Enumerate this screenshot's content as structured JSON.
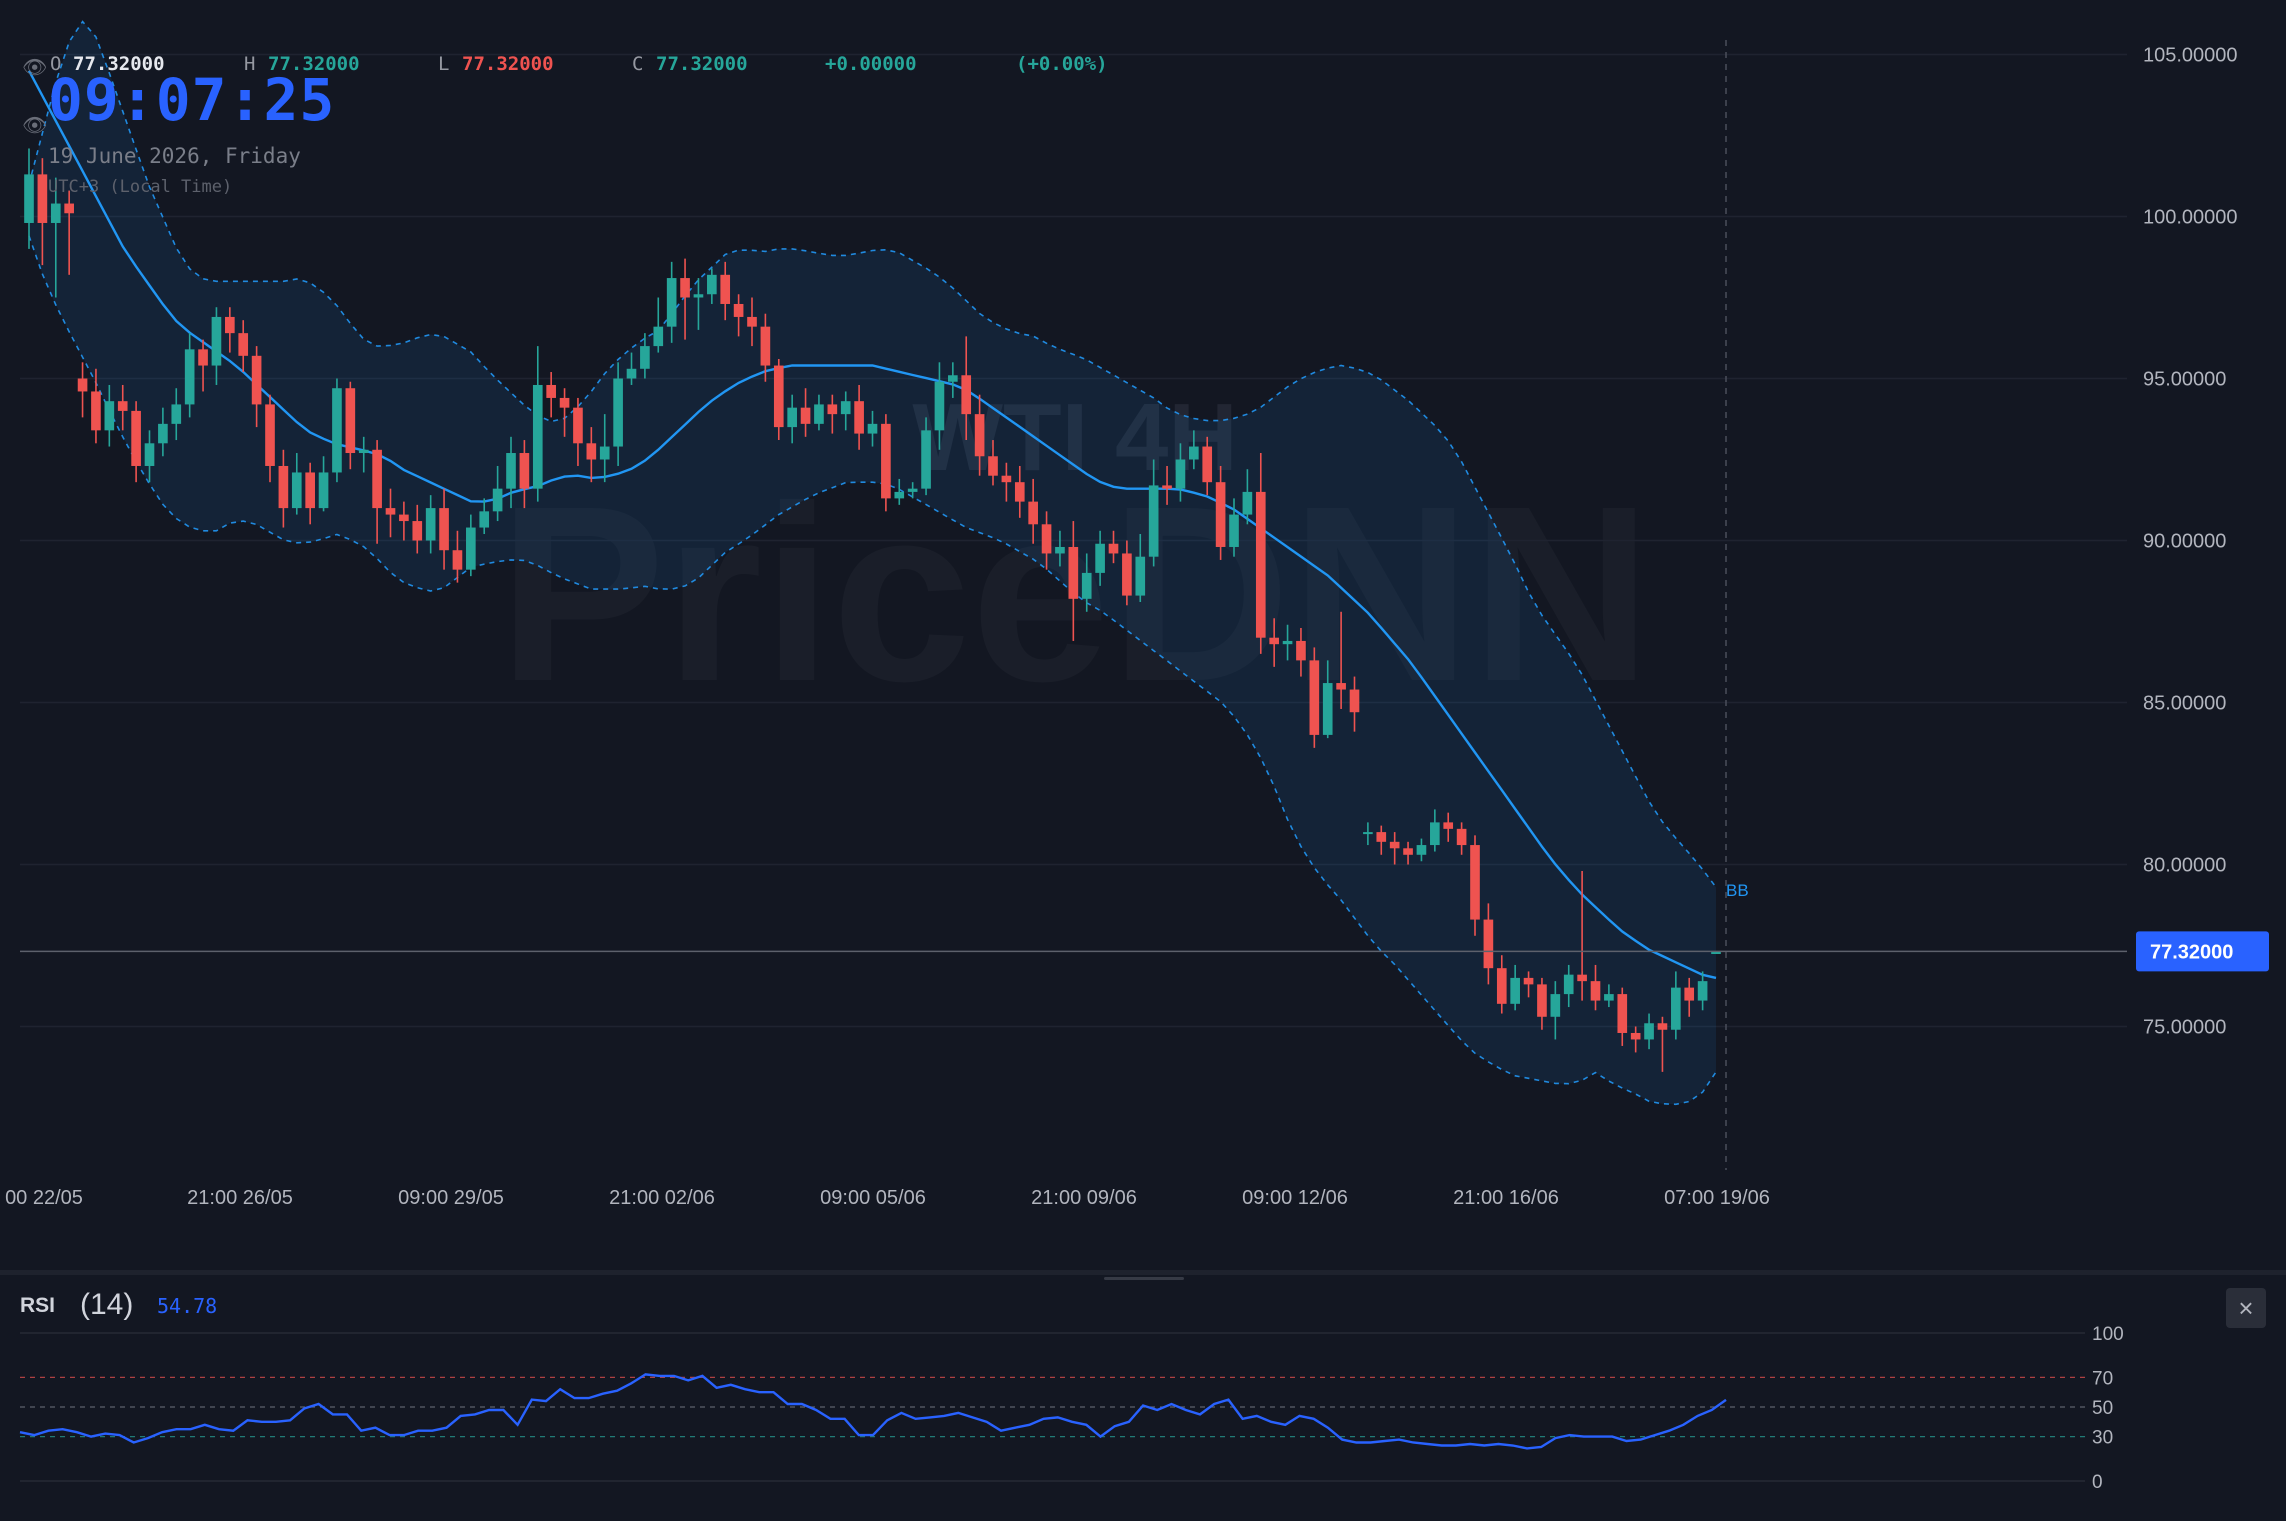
{
  "ohlc_bar": {
    "o_label": "O",
    "o_value": "77.32000",
    "h_label": "H",
    "h_value": "77.32000",
    "l_label": "L",
    "l_value": "77.32000",
    "c_label": "C",
    "c_value": "77.32000",
    "change": "+0.00000",
    "change_pct": "(+0.00%)"
  },
  "clock": {
    "time": "09:07:25",
    "date": "19 June 2026, Friday",
    "timezone": "UTC+3 (Local Time)"
  },
  "watermark": {
    "symbol": "WTI 4H",
    "brand": "PriceDNN"
  },
  "indicator_label": "BB",
  "current_price_label": "77.32000",
  "rsi": {
    "name": "RSI",
    "period": "(14)",
    "value": "54.78",
    "close_label": "×",
    "levels": [
      100,
      70,
      50,
      30,
      0
    ],
    "level_labels": [
      "100",
      "70",
      "50",
      "30",
      "0"
    ],
    "values": [
      33,
      31,
      34,
      35,
      33,
      30,
      32,
      31,
      26,
      29,
      33,
      35,
      35,
      38,
      35,
      34,
      41,
      40,
      40,
      41,
      49,
      52,
      45,
      45,
      34,
      36,
      31,
      31,
      34,
      34,
      36,
      44,
      45,
      48,
      48,
      38,
      55,
      54,
      62,
      56,
      56,
      59,
      61,
      66,
      72,
      71,
      71,
      68,
      71,
      63,
      65,
      62,
      60,
      60,
      52,
      52,
      48,
      42,
      42,
      31,
      31,
      41,
      46,
      42,
      43,
      44,
      46,
      43,
      40,
      34,
      36,
      38,
      42,
      43,
      40,
      38,
      30,
      37,
      40,
      51,
      48,
      52,
      48,
      45,
      52,
      55,
      42,
      44,
      40,
      38,
      44,
      42,
      36,
      28,
      26,
      26,
      27,
      28,
      26,
      25,
      24,
      24,
      25,
      24,
      25,
      24,
      22,
      23,
      29,
      31,
      30,
      30,
      30,
      27,
      28,
      31,
      34,
      38,
      44,
      48,
      54.78
    ],
    "colors": {
      "line": "#2962ff",
      "ob": "#ef5350",
      "os": "#26a69a"
    }
  },
  "chart_data": {
    "type": "candlestick",
    "title": "WTI 4H",
    "x_labels": [
      "00 22/05",
      "21:00 26/05",
      "09:00 29/05",
      "21:00 02/06",
      "09:00 05/06",
      "21:00 09/06",
      "09:00 12/06",
      "21:00 16/06",
      "07:00 19/06"
    ],
    "y_ticks": [
      "105.00000",
      "100.00000",
      "95.00000",
      "90.00000",
      "85.00000",
      "80.00000",
      "75.00000"
    ],
    "y_tick_values": [
      105,
      100,
      95,
      90,
      85,
      80,
      75
    ],
    "ylim": [
      70.6,
      106.3
    ],
    "last_price": 77.32,
    "colors": {
      "up": "#26a69a",
      "down": "#ef5350",
      "bb_mid": "#2196f3",
      "bb_band": "#2196f3",
      "price_label_bg": "#2962ff"
    },
    "candles": [
      [
        99.8,
        101.3,
        99.0,
        102.1
      ],
      [
        101.3,
        99.8,
        98.5,
        101.8
      ],
      [
        99.8,
        100.4,
        97.5,
        101.2
      ],
      [
        100.4,
        100.1,
        98.2,
        100.8
      ],
      [
        95.0,
        94.6,
        93.8,
        95.5
      ],
      [
        94.6,
        93.4,
        93.0,
        95.3
      ],
      [
        93.4,
        94.3,
        92.9,
        94.8
      ],
      [
        94.3,
        94.0,
        93.4,
        94.8
      ],
      [
        94.0,
        92.3,
        91.8,
        94.3
      ],
      [
        92.3,
        93.0,
        91.8,
        93.4
      ],
      [
        93.0,
        93.6,
        92.6,
        94.1
      ],
      [
        93.6,
        94.2,
        93.1,
        94.7
      ],
      [
        94.2,
        95.9,
        93.8,
        96.4
      ],
      [
        95.9,
        95.4,
        94.6,
        96.2
      ],
      [
        95.4,
        96.9,
        94.8,
        97.2
      ],
      [
        96.9,
        96.4,
        95.8,
        97.2
      ],
      [
        96.4,
        95.7,
        95.2,
        96.8
      ],
      [
        95.7,
        94.2,
        93.5,
        96.0
      ],
      [
        94.2,
        92.3,
        91.8,
        94.5
      ],
      [
        92.3,
        91.0,
        90.4,
        92.8
      ],
      [
        91.0,
        92.1,
        90.8,
        92.7
      ],
      [
        92.1,
        91.0,
        90.5,
        92.4
      ],
      [
        91.0,
        92.1,
        90.9,
        92.6
      ],
      [
        92.1,
        94.7,
        91.8,
        95.0
      ],
      [
        94.7,
        92.7,
        92.2,
        94.9
      ],
      [
        92.7,
        92.8,
        92.1,
        93.2
      ],
      [
        92.8,
        91.0,
        89.9,
        93.1
      ],
      [
        91.0,
        90.8,
        90.1,
        91.6
      ],
      [
        90.8,
        90.6,
        90.0,
        91.2
      ],
      [
        90.6,
        90.0,
        89.6,
        91.1
      ],
      [
        90.0,
        91.0,
        89.6,
        91.4
      ],
      [
        91.0,
        89.7,
        89.1,
        91.6
      ],
      [
        89.7,
        89.1,
        88.7,
        90.3
      ],
      [
        89.1,
        90.4,
        88.9,
        90.8
      ],
      [
        90.4,
        90.9,
        90.2,
        91.3
      ],
      [
        90.9,
        91.6,
        90.6,
        92.3
      ],
      [
        91.6,
        92.7,
        91.0,
        93.2
      ],
      [
        92.7,
        91.6,
        91.0,
        93.1
      ],
      [
        91.6,
        94.8,
        91.2,
        96.0
      ],
      [
        94.8,
        94.4,
        93.8,
        95.2
      ],
      [
        94.4,
        94.1,
        93.2,
        94.7
      ],
      [
        94.1,
        93.0,
        92.3,
        94.4
      ],
      [
        93.0,
        92.5,
        91.8,
        93.5
      ],
      [
        92.5,
        92.9,
        91.8,
        93.9
      ],
      [
        92.9,
        95.0,
        92.3,
        95.5
      ],
      [
        95.0,
        95.3,
        94.8,
        95.8
      ],
      [
        95.3,
        96.0,
        95.0,
        96.4
      ],
      [
        96.0,
        96.6,
        95.8,
        97.5
      ],
      [
        96.6,
        98.1,
        96.1,
        98.6
      ],
      [
        98.1,
        97.5,
        96.2,
        98.7
      ],
      [
        97.5,
        97.6,
        96.5,
        98.1
      ],
      [
        97.6,
        98.2,
        97.3,
        98.4
      ],
      [
        98.2,
        97.3,
        96.8,
        98.6
      ],
      [
        97.3,
        96.9,
        96.3,
        97.6
      ],
      [
        96.9,
        96.6,
        96.0,
        97.5
      ],
      [
        96.6,
        95.4,
        94.9,
        97.0
      ],
      [
        95.4,
        93.5,
        93.1,
        95.6
      ],
      [
        93.5,
        94.1,
        93.0,
        94.5
      ],
      [
        94.1,
        93.6,
        93.2,
        94.7
      ],
      [
        93.6,
        94.2,
        93.4,
        94.5
      ],
      [
        94.2,
        93.9,
        93.3,
        94.5
      ],
      [
        93.9,
        94.3,
        93.4,
        94.6
      ],
      [
        94.3,
        93.3,
        92.8,
        94.8
      ],
      [
        93.3,
        93.6,
        92.9,
        94.0
      ],
      [
        93.6,
        91.3,
        90.9,
        93.9
      ],
      [
        91.3,
        91.5,
        91.1,
        91.9
      ],
      [
        91.5,
        91.6,
        91.3,
        91.8
      ],
      [
        91.6,
        93.4,
        91.4,
        93.8
      ],
      [
        93.4,
        94.9,
        92.8,
        95.5
      ],
      [
        94.9,
        95.1,
        94.4,
        95.5
      ],
      [
        95.1,
        93.9,
        93.1,
        96.3
      ],
      [
        93.9,
        92.6,
        92.0,
        94.5
      ],
      [
        92.6,
        92.0,
        91.7,
        93.1
      ],
      [
        92.0,
        91.8,
        91.2,
        92.4
      ],
      [
        91.8,
        91.2,
        90.7,
        92.3
      ],
      [
        91.2,
        90.5,
        89.9,
        91.9
      ],
      [
        90.5,
        89.6,
        89.1,
        90.9
      ],
      [
        89.6,
        89.8,
        89.2,
        90.3
      ],
      [
        89.8,
        88.2,
        86.9,
        90.6
      ],
      [
        88.2,
        89.0,
        87.8,
        89.6
      ],
      [
        89.0,
        89.9,
        88.6,
        90.3
      ],
      [
        89.9,
        89.6,
        89.3,
        90.3
      ],
      [
        89.6,
        88.3,
        88.0,
        90.0
      ],
      [
        88.3,
        89.5,
        88.1,
        90.2
      ],
      [
        89.5,
        91.7,
        89.2,
        92.5
      ],
      [
        91.7,
        91.6,
        91.1,
        92.3
      ],
      [
        91.6,
        92.5,
        91.2,
        93.0
      ],
      [
        92.5,
        92.9,
        92.2,
        93.4
      ],
      [
        92.9,
        91.8,
        91.4,
        93.2
      ],
      [
        91.8,
        89.8,
        89.4,
        92.3
      ],
      [
        89.8,
        90.8,
        89.5,
        91.3
      ],
      [
        90.8,
        91.5,
        90.5,
        92.2
      ],
      [
        91.5,
        87.0,
        86.5,
        92.7
      ],
      [
        87.0,
        86.8,
        86.1,
        87.6
      ],
      [
        86.8,
        86.9,
        86.3,
        87.4
      ],
      [
        86.9,
        86.3,
        85.8,
        87.3
      ],
      [
        86.3,
        84.0,
        83.6,
        86.7
      ],
      [
        84.0,
        85.6,
        83.9,
        86.3
      ],
      [
        85.6,
        85.4,
        84.8,
        87.8
      ],
      [
        85.4,
        84.7,
        84.1,
        85.8
      ],
      [
        81.0,
        81.0,
        80.6,
        81.3
      ],
      [
        81.0,
        80.7,
        80.3,
        81.2
      ],
      [
        80.7,
        80.5,
        80.0,
        81.0
      ],
      [
        80.5,
        80.3,
        80.0,
        80.7
      ],
      [
        80.3,
        80.6,
        80.1,
        80.8
      ],
      [
        80.6,
        81.3,
        80.4,
        81.7
      ],
      [
        81.3,
        81.1,
        80.7,
        81.6
      ],
      [
        81.1,
        80.6,
        80.3,
        81.3
      ],
      [
        80.6,
        78.3,
        77.8,
        80.9
      ],
      [
        78.3,
        76.8,
        76.3,
        78.8
      ],
      [
        76.8,
        75.7,
        75.4,
        77.2
      ],
      [
        75.7,
        76.5,
        75.5,
        76.9
      ],
      [
        76.5,
        76.3,
        75.9,
        76.7
      ],
      [
        76.3,
        75.3,
        74.9,
        76.5
      ],
      [
        75.3,
        76.0,
        74.6,
        76.4
      ],
      [
        76.0,
        76.6,
        75.6,
        76.9
      ],
      [
        76.6,
        76.4,
        75.8,
        79.8
      ],
      [
        76.4,
        75.8,
        75.5,
        76.9
      ],
      [
        75.8,
        76.0,
        75.6,
        76.3
      ],
      [
        76.0,
        74.8,
        74.4,
        76.2
      ],
      [
        74.8,
        74.6,
        74.2,
        75.0
      ],
      [
        74.6,
        75.1,
        74.3,
        75.4
      ],
      [
        75.1,
        74.9,
        73.6,
        75.3
      ],
      [
        74.9,
        76.2,
        74.6,
        76.7
      ],
      [
        76.2,
        75.8,
        75.3,
        76.5
      ],
      [
        75.8,
        76.4,
        75.5,
        76.7
      ],
      [
        77.3,
        77.3,
        77.3,
        77.3
      ]
    ],
    "bb_middle": [
      104.5,
      103.7,
      102.9,
      102.1,
      101.3,
      100.5,
      99.7,
      98.9,
      98.3,
      97.7,
      97.1,
      96.6,
      96.3,
      96.0,
      95.7,
      95.4,
      95.0,
      94.6,
      94.2,
      93.8,
      93.4,
      93.2,
      93.0,
      92.9,
      92.8,
      92.7,
      92.5,
      92.2,
      92.0,
      91.8,
      91.6,
      91.4,
      91.2,
      91.2,
      91.3,
      91.5,
      91.6,
      91.7,
      91.9,
      92.0,
      92.0,
      91.9,
      92.0,
      92.1,
      92.3,
      92.6,
      93.0,
      93.4,
      93.8,
      94.2,
      94.5,
      94.8,
      95.0,
      95.2,
      95.3,
      95.4,
      95.4,
      95.4,
      95.4,
      95.4,
      95.4,
      95.4,
      95.3,
      95.2,
      95.1,
      95.0,
      94.9,
      94.8,
      94.6,
      94.3,
      94.0,
      93.7,
      93.4,
      93.1,
      92.8,
      92.5,
      92.2,
      91.9,
      91.7,
      91.6,
      91.6,
      91.6,
      91.6,
      91.6,
      91.5,
      91.4,
      91.2,
      91.0,
      90.7,
      90.4,
      90.1,
      89.8,
      89.5,
      89.2,
      88.9,
      88.5,
      88.1,
      87.7,
      87.2,
      86.7,
      86.2,
      85.6,
      85.0,
      84.4,
      83.8,
      83.2,
      82.6,
      82.0,
      81.4,
      80.8,
      80.2,
      79.7,
      79.2,
      78.8,
      78.4,
      78.0,
      77.7,
      77.4,
      77.2,
      77.0,
      76.8,
      76.6,
      76.5
    ],
    "bb_upper": [
      101.0,
      103.0,
      105.0,
      106.1,
      105.5,
      104.0,
      102.5,
      101.0,
      99.8,
      98.6,
      98.1,
      98.0,
      98.0,
      98.0,
      98.0,
      98.0,
      98.1,
      97.8,
      97.3,
      96.6,
      96.0,
      96.0,
      96.1,
      96.3,
      96.4,
      96.1,
      95.8,
      95.2,
      94.7,
      94.2,
      93.8,
      93.6,
      94.0,
      94.6,
      95.3,
      95.8,
      96.2,
      96.5,
      97.2,
      97.9,
      98.4,
      98.9,
      99.0,
      98.9,
      99.0,
      99.0,
      98.9,
      98.8,
      98.8,
      98.9,
      99.0,
      98.9,
      98.6,
      98.3,
      97.9,
      97.4,
      96.9,
      96.6,
      96.4,
      96.3,
      96.0,
      95.8,
      95.6,
      95.3,
      95.0,
      94.7,
      94.4,
      94.0,
      93.8,
      93.7,
      93.7,
      93.8,
      94.0,
      94.4,
      94.8,
      95.1,
      95.3,
      95.4,
      95.3,
      95.1,
      94.7,
      94.3,
      93.8,
      93.3,
      92.5,
      91.5,
      90.5,
      89.5,
      88.4,
      87.5,
      86.8,
      86.0,
      85.0,
      84.0,
      83.0,
      82.0,
      81.2,
      80.6,
      80.0,
      79.3
    ],
    "bb_lower": [
      99.4,
      97.9,
      96.8,
      95.8,
      94.8,
      93.7,
      92.7,
      91.8,
      91.0,
      90.5,
      90.3,
      90.3,
      90.6,
      90.6,
      90.3,
      90.0,
      89.9,
      90.0,
      90.2,
      90.0,
      89.7,
      89.1,
      88.7,
      88.5,
      88.4,
      88.8,
      89.2,
      89.3,
      89.4,
      89.4,
      89.2,
      88.9,
      88.7,
      88.5,
      88.5,
      88.5,
      88.6,
      88.5,
      88.5,
      88.7,
      89.2,
      89.7,
      90.0,
      90.4,
      90.8,
      91.1,
      91.4,
      91.6,
      91.8,
      91.8,
      91.8,
      91.6,
      91.3,
      91.0,
      90.7,
      90.4,
      90.2,
      90.0,
      89.7,
      89.4,
      89.0,
      88.5,
      88.1,
      87.8,
      87.4,
      87.0,
      86.6,
      86.2,
      85.8,
      85.4,
      85.0,
      84.4,
      83.6,
      82.5,
      81.2,
      80.2,
      79.5,
      78.9,
      78.2,
      77.5,
      77.0,
      76.4,
      75.8,
      75.2,
      74.6,
      74.1,
      73.8,
      73.5,
      73.4,
      73.3,
      73.2,
      73.3,
      73.6,
      73.2,
      73.0,
      72.7,
      72.6,
      72.6,
      72.8,
      73.6
    ]
  }
}
